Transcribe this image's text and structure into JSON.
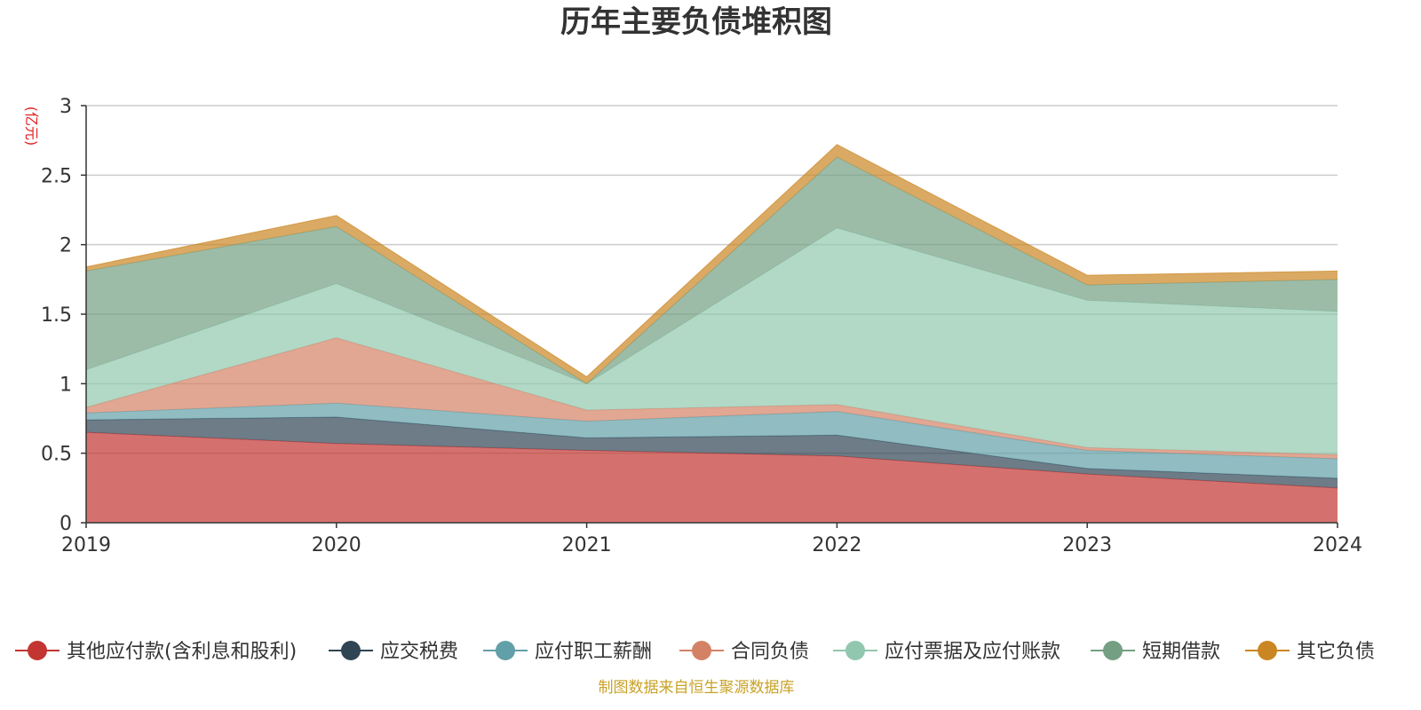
{
  "chart_data": {
    "type": "area",
    "title": "历年主要负债堆积图",
    "ylabel": "(亿元)",
    "xlabel": "",
    "x": [
      "2019",
      "2020",
      "2021",
      "2022",
      "2023",
      "2024"
    ],
    "ylim": [
      0,
      3
    ],
    "yticks": [
      "0",
      "0.5",
      "1",
      "1.5",
      "2",
      "2.5",
      "3"
    ],
    "stacked": true,
    "grid": true,
    "legend_position": "bottom",
    "series": [
      {
        "name": "其他应付款(含利息和股利)",
        "color": "#c23531",
        "values": [
          0.65,
          0.57,
          0.52,
          0.48,
          0.35,
          0.25
        ]
      },
      {
        "name": "应交税费",
        "color": "#2f4554",
        "values": [
          0.09,
          0.19,
          0.09,
          0.15,
          0.04,
          0.07
        ]
      },
      {
        "name": "应付职工薪酬",
        "color": "#61a0a8",
        "values": [
          0.05,
          0.1,
          0.12,
          0.17,
          0.13,
          0.14
        ]
      },
      {
        "name": "合同负债",
        "color": "#d48265",
        "values": [
          0.04,
          0.47,
          0.08,
          0.05,
          0.02,
          0.03
        ]
      },
      {
        "name": "应付票据及应付账款",
        "color": "#91c7ae",
        "values": [
          0.27,
          0.39,
          0.19,
          1.27,
          1.06,
          1.03
        ]
      },
      {
        "name": "短期借款",
        "color": "#749f83",
        "values": [
          0.71,
          0.41,
          0.0,
          0.51,
          0.11,
          0.23
        ]
      },
      {
        "name": "其它负债",
        "color": "#ca8622",
        "values": [
          0.03,
          0.08,
          0.05,
          0.09,
          0.07,
          0.06
        ]
      }
    ]
  },
  "source_note": "制图数据来自恒生聚源数据库"
}
